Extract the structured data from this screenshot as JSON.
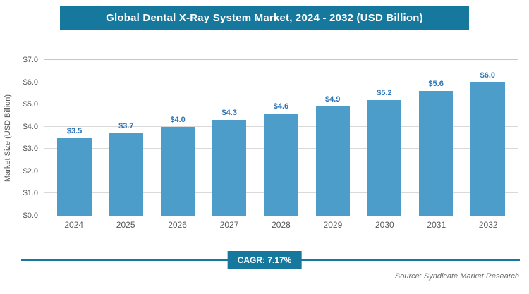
{
  "header": {
    "title": "Global Dental X-Ray System Market, 2024 - 2032 (USD Billion)"
  },
  "chart_data": {
    "type": "bar",
    "title": "Global Dental X-Ray System Market, 2024 - 2032 (USD Billion)",
    "categories": [
      "2024",
      "2025",
      "2026",
      "2027",
      "2028",
      "2029",
      "2030",
      "2031",
      "2032"
    ],
    "values": [
      3.5,
      3.7,
      4.0,
      4.3,
      4.6,
      4.9,
      5.2,
      5.6,
      6.0
    ],
    "value_labels": [
      "$3.5",
      "$3.7",
      "$4.0",
      "$4.3",
      "$4.6",
      "$4.9",
      "$5.2",
      "$5.6",
      "$6.0"
    ],
    "xlabel": "",
    "ylabel": "Market Size (USD Billion)",
    "ylim": [
      0,
      7
    ],
    "ytick_labels": [
      "$0.0",
      "$1.0",
      "$2.0",
      "$3.0",
      "$4.0",
      "$5.0",
      "$6.0",
      "$7.0"
    ],
    "grid": true,
    "legend": "none"
  },
  "footer": {
    "cagr_label": "CAGR: 7.17%",
    "source": "Source: Syndicate Market Research"
  },
  "colors": {
    "banner": "#17789e",
    "bar": "#4d9dca",
    "value_label": "#2e74b5",
    "axis_text": "#595959",
    "gridline": "#d9d9d9"
  }
}
